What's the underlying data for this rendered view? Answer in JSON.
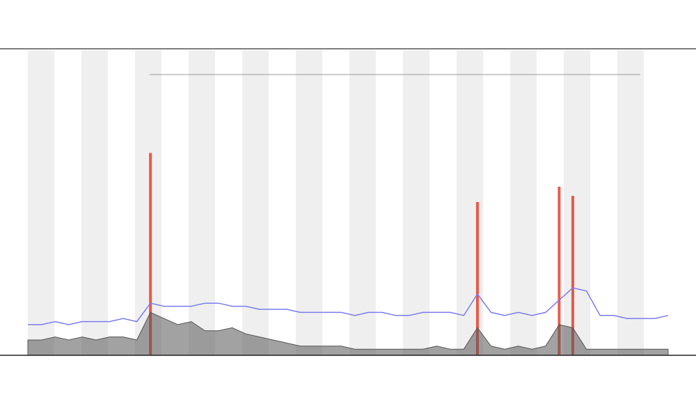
{
  "chart_data": {
    "type": "line",
    "xlim": [
      0,
      47
    ],
    "ylim": [
      0,
      100
    ],
    "x": [
      0,
      1,
      2,
      3,
      4,
      5,
      6,
      7,
      8,
      9,
      10,
      11,
      12,
      13,
      14,
      15,
      16,
      17,
      18,
      19,
      20,
      21,
      22,
      23,
      24,
      25,
      26,
      27,
      28,
      29,
      30,
      31,
      32,
      33,
      34,
      35,
      36,
      37,
      38,
      39,
      40,
      41,
      42,
      43,
      44,
      45,
      46,
      47
    ],
    "series": [
      {
        "color": "#7b7bf0",
        "style": "line",
        "values": [
          10,
          10,
          11,
          10,
          11,
          11,
          11,
          12,
          11,
          17,
          16,
          16,
          16,
          17,
          17,
          16,
          16,
          15,
          15,
          15,
          14,
          14,
          14,
          14,
          13,
          14,
          14,
          13,
          13,
          14,
          14,
          14,
          13,
          20,
          14,
          13,
          14,
          13,
          14,
          18,
          22,
          21,
          13,
          13,
          12,
          12,
          12,
          13
        ]
      },
      {
        "color": "#555555",
        "style": "area",
        "values": [
          5,
          5,
          6,
          5,
          6,
          5,
          6,
          6,
          5,
          14,
          12,
          10,
          11,
          8,
          8,
          9,
          7,
          6,
          5,
          4,
          3,
          3,
          3,
          3,
          2,
          2,
          2,
          2,
          2,
          2,
          3,
          2,
          2,
          9,
          3,
          2,
          3,
          2,
          3,
          10,
          9,
          2,
          2,
          2,
          2,
          2,
          2,
          2
        ]
      },
      {
        "color": "#e8321e",
        "style": "spikes",
        "values": [
          0,
          0,
          0,
          0,
          0,
          0,
          0,
          0,
          0,
          66,
          0,
          0,
          0,
          0,
          0,
          0,
          0,
          0,
          0,
          0,
          0,
          0,
          0,
          0,
          0,
          0,
          0,
          0,
          0,
          0,
          0,
          0,
          0,
          50,
          0,
          0,
          0,
          0,
          0,
          55,
          52,
          0,
          0,
          0,
          0,
          0,
          0,
          0
        ]
      }
    ]
  }
}
